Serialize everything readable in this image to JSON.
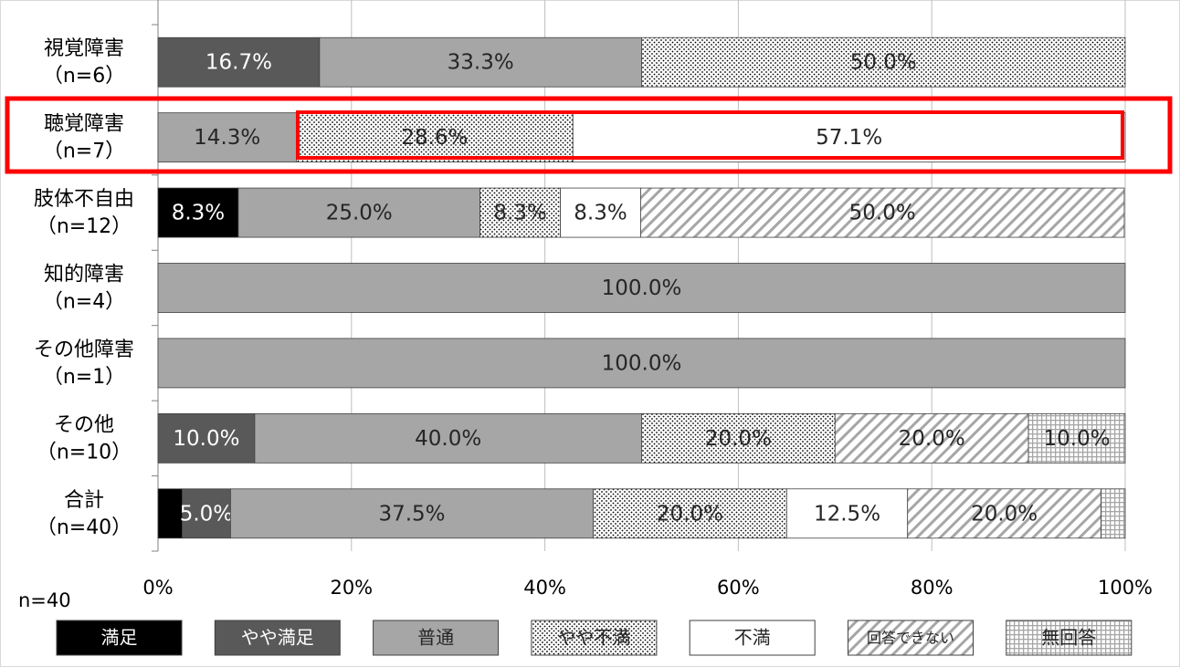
{
  "chart_data": {
    "type": "stacked_barh",
    "categories": [
      [
        "視覚障害",
        "（n=6）"
      ],
      [
        "聴覚障害",
        "（n=7）"
      ],
      [
        "肢体不自由",
        "（n=12）"
      ],
      [
        "知的障害",
        "（n=4）"
      ],
      [
        "その他障害",
        "（n=1）"
      ],
      [
        "その他",
        "（n=10）"
      ],
      [
        "合計",
        "（n=40）"
      ]
    ],
    "series": [
      {
        "name": "満足",
        "color": "#000000",
        "text_color": "#ffffff",
        "pattern": null,
        "values": [
          0,
          0,
          8.3,
          0,
          0,
          0,
          2.5
        ],
        "value_labels": [
          null,
          null,
          "8.3%",
          null,
          null,
          null,
          null
        ]
      },
      {
        "name": "やや満足",
        "color": "#595959",
        "text_color": "#ffffff",
        "pattern": null,
        "values": [
          16.7,
          0,
          0,
          0,
          0,
          10.0,
          5.0
        ],
        "value_labels": [
          "16.7%",
          null,
          null,
          null,
          null,
          "10.0%",
          "5.0%"
        ]
      },
      {
        "name": "普通",
        "color": "#a6a6a6",
        "text_color": "#262626",
        "pattern": null,
        "values": [
          33.3,
          14.3,
          25.0,
          100.0,
          100.0,
          40.0,
          37.5
        ],
        "value_labels": [
          "33.3%",
          "14.3%",
          "25.0%",
          "100.0%",
          "100.0%",
          "40.0%",
          "37.5%"
        ]
      },
      {
        "name": "やや不満",
        "color": "#ffffff",
        "text_color": "#262626",
        "pattern": "dots",
        "values": [
          50.0,
          28.6,
          8.3,
          0,
          0,
          20.0,
          20.0
        ],
        "value_labels": [
          "50.0%",
          "28.6%",
          "8.3%",
          null,
          null,
          "20.0%",
          "20.0%"
        ]
      },
      {
        "name": "不満",
        "color": "#ffffff",
        "text_color": "#262626",
        "pattern": null,
        "values": [
          0,
          57.1,
          8.3,
          0,
          0,
          0,
          12.5
        ],
        "value_labels": [
          null,
          "57.1%",
          "8.3%",
          null,
          null,
          null,
          "12.5%"
        ]
      },
      {
        "name": "回答できない",
        "color": "#ffffff",
        "text_color": "#262626",
        "pattern": "diagonal",
        "values": [
          0,
          0,
          50.0,
          0,
          0,
          20.0,
          20.0
        ],
        "value_labels": [
          null,
          null,
          "50.0%",
          null,
          null,
          "20.0%",
          "20.0%"
        ]
      },
      {
        "name": "無回答",
        "color": "#ffffff",
        "text_color": "#262626",
        "pattern": "grid",
        "values": [
          0,
          0,
          0,
          0,
          0,
          10.0,
          2.5
        ],
        "value_labels": [
          null,
          null,
          null,
          null,
          null,
          "10.0%",
          null
        ]
      }
    ],
    "xlim": [
      0,
      100
    ],
    "xticks": [
      {
        "value": 0,
        "label": "0%"
      },
      {
        "value": 20,
        "label": "20%"
      },
      {
        "value": 40,
        "label": "40%"
      },
      {
        "value": 60,
        "label": "60%"
      },
      {
        "value": 80,
        "label": "80%"
      },
      {
        "value": 100,
        "label": "100%"
      }
    ],
    "grid": true,
    "note": "n=40"
  }
}
